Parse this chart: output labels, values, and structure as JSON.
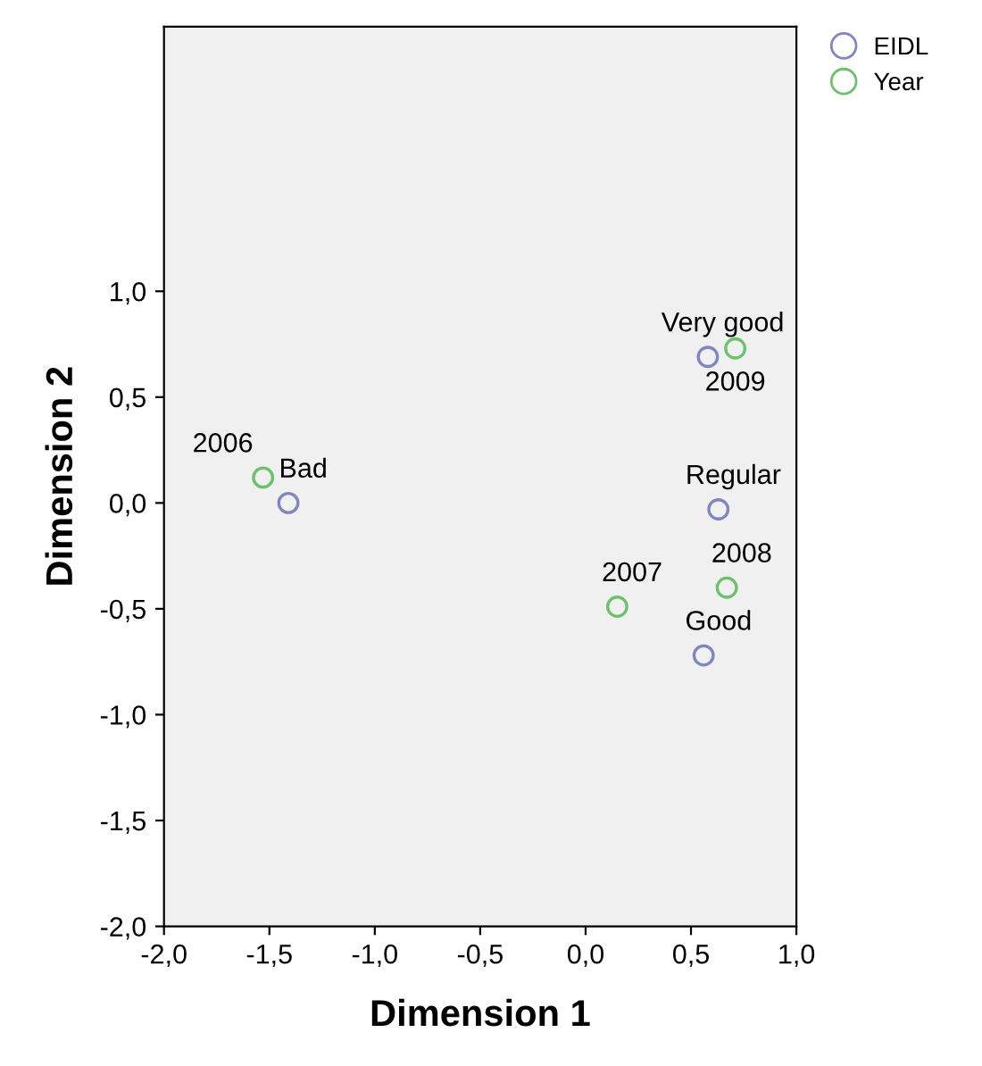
{
  "chart_data": {
    "type": "scatter",
    "xlabel": "Dimension 1",
    "ylabel": "Dimension 2",
    "series": [
      {
        "name": "EIDL",
        "color": "#7f86c0",
        "x": [
          -1.41,
          0.63,
          0.58,
          0.56
        ],
        "values": [
          0.0,
          -0.03,
          0.69,
          -0.72
        ]
      },
      {
        "name": "Year",
        "color": "#6cc26c",
        "x": [
          -1.53,
          0.15,
          0.67,
          0.71
        ],
        "values": [
          0.12,
          -0.49,
          -0.4,
          0.73
        ]
      }
    ],
    "annotations": [
      {
        "text": "Bad",
        "x": -1.41,
        "y": 0.0
      },
      {
        "text": "Regular",
        "x": 0.63,
        "y": -0.03
      },
      {
        "text": "Very good",
        "x": 0.58,
        "y": 0.69
      },
      {
        "text": "Good",
        "x": 0.56,
        "y": -0.72
      },
      {
        "text": "2006",
        "x": -1.53,
        "y": 0.12
      },
      {
        "text": "2007",
        "x": 0.15,
        "y": -0.49
      },
      {
        "text": "2008",
        "x": 0.67,
        "y": -0.4
      },
      {
        "text": "2009",
        "x": 0.71,
        "y": 0.73
      }
    ],
    "xlim": [
      -2.0,
      1.0
    ],
    "ylim": [
      -2.0,
      2.25
    ],
    "xticks": [
      {
        "value": -2.0,
        "label": "-2,0"
      },
      {
        "value": -1.5,
        "label": "-1,5"
      },
      {
        "value": -1.0,
        "label": "-1,0"
      },
      {
        "value": -0.5,
        "label": "-0,5"
      },
      {
        "value": 0.0,
        "label": "0,0"
      },
      {
        "value": 0.5,
        "label": "0,5"
      },
      {
        "value": 1.0,
        "label": "1,0"
      }
    ],
    "yticks": [
      {
        "value": -2.0,
        "label": "-2,0"
      },
      {
        "value": -1.5,
        "label": "-1,5"
      },
      {
        "value": -1.0,
        "label": "-1,0"
      },
      {
        "value": -0.5,
        "label": "-0,5"
      },
      {
        "value": 0.0,
        "label": "0,0"
      },
      {
        "value": 0.5,
        "label": "0,5"
      },
      {
        "value": 1.0,
        "label": "1,0"
      }
    ],
    "marker": "circle",
    "grid": false,
    "legend": "top right"
  }
}
